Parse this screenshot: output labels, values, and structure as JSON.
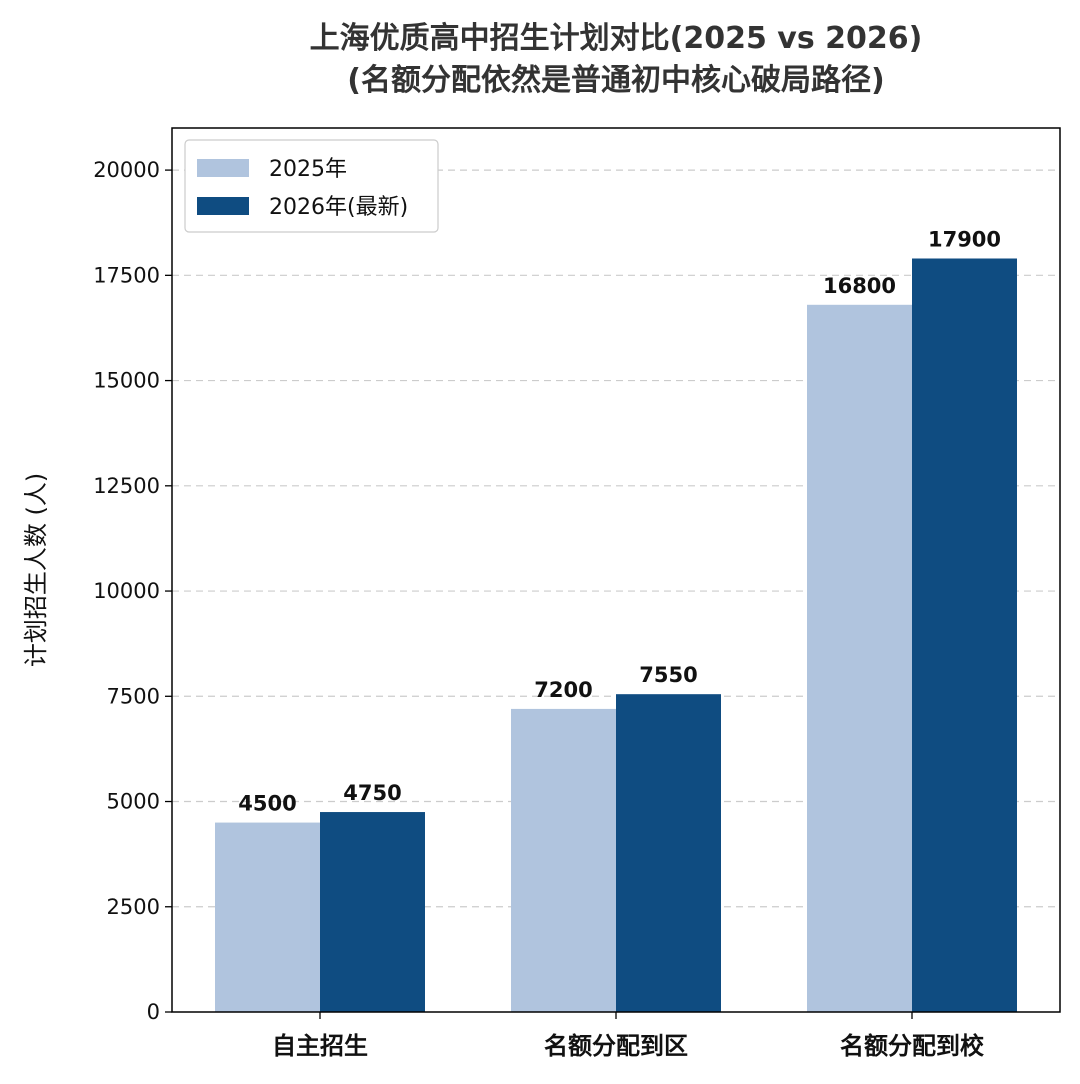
{
  "chart_data": {
    "type": "bar",
    "title": [
      "上海优质高中招生计划对比(2025 vs 2026)",
      "(名额分配依然是普通初中核心破局路径)"
    ],
    "ylabel": "计划招生人数 (人)",
    "xlabel": "",
    "categories": [
      "自主招生",
      "名额分配到区",
      "名额分配到校"
    ],
    "series": [
      {
        "name": "2025年",
        "values": [
          4500,
          7200,
          16800
        ],
        "color": "#b0c4de"
      },
      {
        "name": "2026年(最新)",
        "values": [
          4750,
          7550,
          17900
        ],
        "color": "#0f4c81"
      }
    ],
    "ylim": [
      0,
      21000
    ],
    "yticks": [
      0,
      2500,
      5000,
      7500,
      10000,
      12500,
      15000,
      17500,
      20000
    ],
    "grid": true,
    "legend_position": "top-left"
  }
}
